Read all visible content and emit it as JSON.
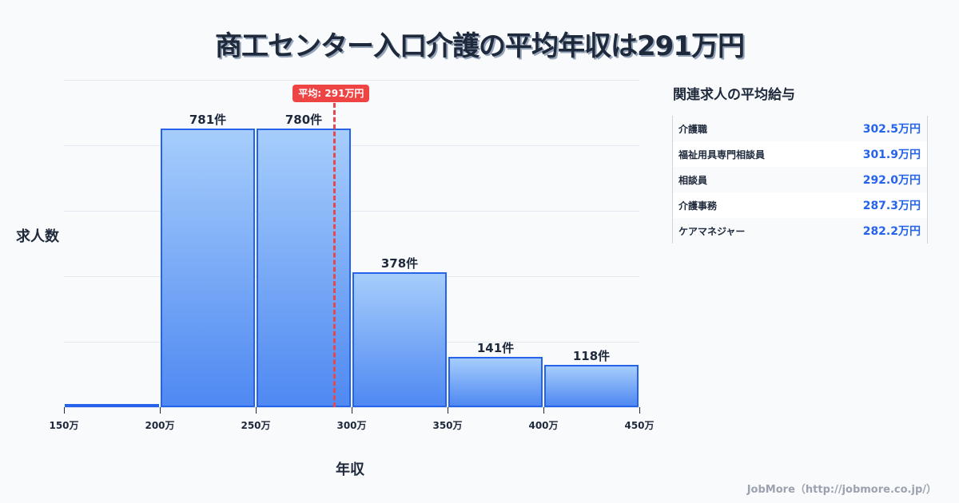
{
  "title": "商工センター入口介護の平均年収は291万円",
  "chart_data": {
    "type": "bar",
    "title": "商工センター入口介護の平均年収は291万円",
    "xlabel": "年収",
    "ylabel": "求人数",
    "categories": [
      "150-200万",
      "200-250万",
      "250-300万",
      "300-350万",
      "350-400万",
      "400-450万"
    ],
    "bin_edges": [
      150,
      200,
      250,
      300,
      350,
      400,
      450
    ],
    "values": [
      5,
      781,
      780,
      378,
      141,
      118
    ],
    "bar_labels": [
      "",
      "781件",
      "780件",
      "378件",
      "141件",
      "118件"
    ],
    "x_tick_labels": [
      "150万",
      "200万",
      "250万",
      "300万",
      "350万",
      "400万",
      "450万"
    ],
    "xlim": [
      150,
      450
    ],
    "ylim": [
      0,
      917
    ],
    "grid": true,
    "average": {
      "value": 291,
      "label": "平均: 291万円",
      "color": "#ef4444"
    },
    "bar_color_top": "#a6cdfb",
    "bar_color_bottom": "#4f89f2",
    "bar_border": "#2563eb"
  },
  "sidebar": {
    "title": "関連求人の平均給与",
    "rows": [
      {
        "name": "介護職",
        "value": "302.5万円"
      },
      {
        "name": "福祉用具専門相談員",
        "value": "301.9万円"
      },
      {
        "name": "相談員",
        "value": "292.0万円"
      },
      {
        "name": "介護事務",
        "value": "287.3万円"
      },
      {
        "name": "ケアマネジャー",
        "value": "282.2万円"
      }
    ]
  },
  "footer": "JobMore（http://jobmore.co.jp/）"
}
